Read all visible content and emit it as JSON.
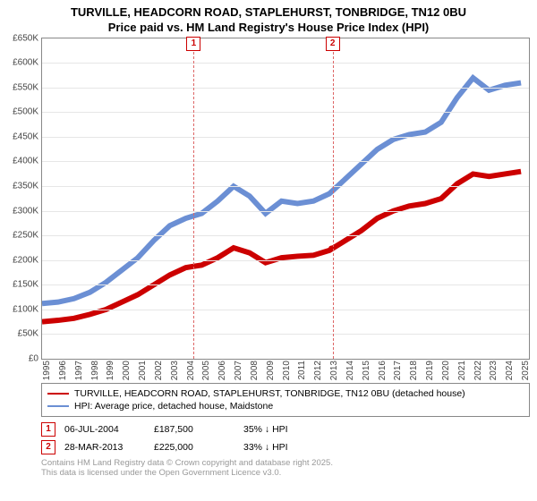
{
  "title_line1": "TURVILLE, HEADCORN ROAD, STAPLEHURST, TONBRIDGE, TN12 0BU",
  "title_line2": "Price paid vs. HM Land Registry's House Price Index (HPI)",
  "chart": {
    "type": "line",
    "background_color": "#ffffff",
    "grid_color": "#e6e6e6",
    "axis_color": "#888888",
    "x_min": 1995,
    "x_max": 2025.5,
    "y_min": 0,
    "y_max": 650000,
    "y_ticks": [
      0,
      50000,
      100000,
      150000,
      200000,
      250000,
      300000,
      350000,
      400000,
      450000,
      500000,
      550000,
      600000,
      650000
    ],
    "y_tick_labels": [
      "£0",
      "£50K",
      "£100K",
      "£150K",
      "£200K",
      "£250K",
      "£300K",
      "£350K",
      "£400K",
      "£450K",
      "£500K",
      "£550K",
      "£600K",
      "£650K"
    ],
    "x_ticks": [
      1995,
      1996,
      1997,
      1998,
      1999,
      2000,
      2001,
      2002,
      2003,
      2004,
      2005,
      2006,
      2007,
      2008,
      2009,
      2010,
      2011,
      2012,
      2013,
      2014,
      2015,
      2016,
      2017,
      2018,
      2019,
      2020,
      2021,
      2022,
      2023,
      2024,
      2025
    ],
    "label_fontsize": 10,
    "title_fontsize": 13,
    "line_width": 2,
    "series": [
      {
        "name": "price_paid",
        "color": "#cc0000",
        "x": [
          1995,
          1996,
          1997,
          1998,
          1999,
          2000,
          2001,
          2002,
          2003,
          2004,
          2004.5,
          2005,
          2006,
          2007,
          2008,
          2009,
          2010,
          2011,
          2012,
          2013,
          2013.25,
          2014,
          2015,
          2016,
          2017,
          2018,
          2019,
          2020,
          2021,
          2022,
          2023,
          2024,
          2025
        ],
        "y": [
          75000,
          78000,
          82000,
          90000,
          100000,
          115000,
          130000,
          150000,
          170000,
          185000,
          187500,
          190000,
          205000,
          225000,
          215000,
          195000,
          205000,
          208000,
          210000,
          220000,
          225000,
          240000,
          260000,
          285000,
          300000,
          310000,
          315000,
          325000,
          355000,
          375000,
          370000,
          375000,
          380000
        ]
      },
      {
        "name": "hpi",
        "color": "#6b8fd4",
        "x": [
          1995,
          1996,
          1997,
          1998,
          1999,
          2000,
          2001,
          2002,
          2003,
          2004,
          2005,
          2006,
          2007,
          2008,
          2009,
          2010,
          2011,
          2012,
          2013,
          2014,
          2015,
          2016,
          2017,
          2018,
          2019,
          2020,
          2021,
          2022,
          2023,
          2024,
          2025
        ],
        "y": [
          112000,
          115000,
          122000,
          135000,
          155000,
          180000,
          205000,
          240000,
          270000,
          285000,
          295000,
          320000,
          350000,
          330000,
          295000,
          320000,
          315000,
          320000,
          335000,
          365000,
          395000,
          425000,
          445000,
          455000,
          460000,
          480000,
          530000,
          570000,
          545000,
          555000,
          560000
        ]
      }
    ],
    "events": [
      {
        "n": "1",
        "x": 2004.5,
        "line_color": "#dd6666"
      },
      {
        "n": "2",
        "x": 2013.2,
        "line_color": "#dd6666"
      }
    ],
    "sale_markers": [
      {
        "x": 2004.5,
        "y": 187500,
        "color": "#cc0000"
      },
      {
        "x": 2013.2,
        "y": 225000,
        "color": "#cc0000"
      }
    ]
  },
  "legend": {
    "items": [
      {
        "color": "#cc0000",
        "label": "TURVILLE, HEADCORN ROAD, STAPLEHURST, TONBRIDGE, TN12 0BU (detached house)"
      },
      {
        "color": "#6b8fd4",
        "label": "HPI: Average price, detached house, Maidstone"
      }
    ]
  },
  "events_table": [
    {
      "n": "1",
      "date": "06-JUL-2004",
      "price": "£187,500",
      "delta": "35% ↓ HPI"
    },
    {
      "n": "2",
      "date": "28-MAR-2013",
      "price": "£225,000",
      "delta": "33% ↓ HPI"
    }
  ],
  "footnote_line1": "Contains HM Land Registry data © Crown copyright and database right 2025.",
  "footnote_line2": "This data is licensed under the Open Government Licence v3.0."
}
